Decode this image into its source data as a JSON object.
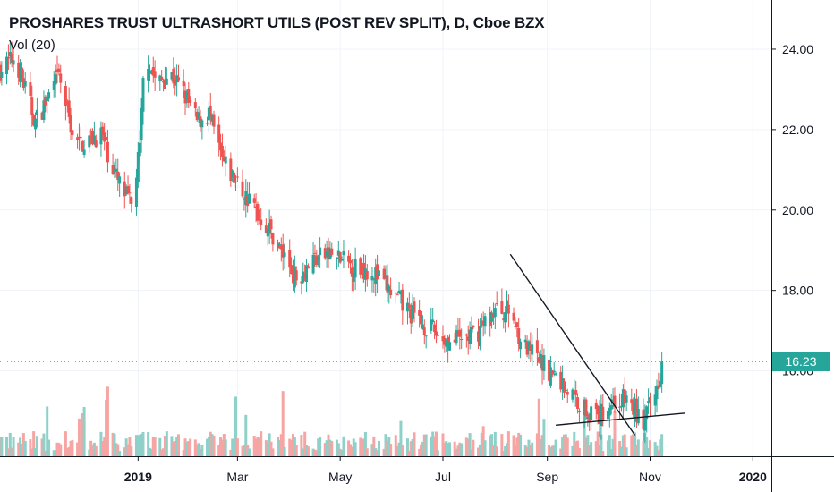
{
  "header": {
    "title": "PROSHARES TRUST ULTRASHORT UTILS (POST REV SPLIT), D, Cboe BZX",
    "volume_label": "Vol (20)"
  },
  "colors": {
    "up": "#26a69a",
    "down": "#ef5350",
    "up_volume": "#8fd0c9",
    "down_volume": "#f5a6a4",
    "last_price_line": "#26a69a",
    "trendline": "#131722",
    "grid": "#f0f3fa",
    "axis_text": "#131722"
  },
  "chart_data": {
    "type": "candlestick",
    "title": "PROSHARES TRUST ULTRASHORT UTILS (POST REV SPLIT), D, Cboe BZX",
    "y_axis": {
      "side": "right",
      "min": 14.1,
      "max": 25.0,
      "ticks": [
        24.0,
        22.0,
        20.0,
        18.0,
        16.0
      ]
    },
    "x_axis": {
      "ticks": [
        {
          "label": "2019",
          "x": "2019-01-01"
        },
        {
          "label": "Mar",
          "x": "2019-03-01"
        },
        {
          "label": "May",
          "x": "2019-05-01"
        },
        {
          "label": "Jul",
          "x": "2019-07-01"
        },
        {
          "label": "Sep",
          "x": "2019-09-01"
        },
        {
          "label": "Nov",
          "x": "2019-11-01"
        },
        {
          "label": "2020",
          "x": "2020-01-01"
        }
      ],
      "range": [
        "2018-10-11",
        "2020-01-12"
      ]
    },
    "last_price": 16.23,
    "approx_close_path": [
      {
        "date": "2018-10-11",
        "close": 23.5
      },
      {
        "date": "2018-10-20",
        "close": 23.8
      },
      {
        "date": "2018-11-01",
        "close": 22.2
      },
      {
        "date": "2018-11-15",
        "close": 23.3
      },
      {
        "date": "2018-11-25",
        "close": 21.6
      },
      {
        "date": "2018-12-10",
        "close": 21.9
      },
      {
        "date": "2018-12-20",
        "close": 20.7
      },
      {
        "date": "2018-12-28",
        "close": 20.1
      },
      {
        "date": "2019-01-02",
        "close": 21.5
      },
      {
        "date": "2019-01-05",
        "close": 24.0
      },
      {
        "date": "2019-01-12",
        "close": 23.1
      },
      {
        "date": "2019-01-20",
        "close": 23.4
      },
      {
        "date": "2019-01-27",
        "close": 23.0
      },
      {
        "date": "2019-02-05",
        "close": 22.2
      },
      {
        "date": "2019-02-12",
        "close": 22.4
      },
      {
        "date": "2019-02-20",
        "close": 21.2
      },
      {
        "date": "2019-03-05",
        "close": 20.4
      },
      {
        "date": "2019-03-20",
        "close": 19.5
      },
      {
        "date": "2019-04-05",
        "close": 18.3
      },
      {
        "date": "2019-04-15",
        "close": 18.8
      },
      {
        "date": "2019-04-25",
        "close": 18.9
      },
      {
        "date": "2019-05-08",
        "close": 18.6
      },
      {
        "date": "2019-05-20",
        "close": 18.5
      },
      {
        "date": "2019-06-01",
        "close": 17.9
      },
      {
        "date": "2019-06-15",
        "close": 17.3
      },
      {
        "date": "2019-06-25",
        "close": 17.0
      },
      {
        "date": "2019-07-05",
        "close": 16.7
      },
      {
        "date": "2019-07-20",
        "close": 16.9
      },
      {
        "date": "2019-08-01",
        "close": 17.5
      },
      {
        "date": "2019-08-10",
        "close": 17.5
      },
      {
        "date": "2019-08-18",
        "close": 16.6
      },
      {
        "date": "2019-09-05",
        "close": 15.9
      },
      {
        "date": "2019-09-20",
        "close": 15.2
      },
      {
        "date": "2019-10-01",
        "close": 14.8
      },
      {
        "date": "2019-10-08",
        "close": 15.2
      },
      {
        "date": "2019-10-18",
        "close": 15.3
      },
      {
        "date": "2019-10-28",
        "close": 14.7
      },
      {
        "date": "2019-11-04",
        "close": 15.4
      },
      {
        "date": "2019-11-08",
        "close": 16.23
      }
    ],
    "trendlines": [
      {
        "name": "descending",
        "from": {
          "date": "2019-08-10",
          "value": 18.9
        },
        "to": {
          "date": "2019-10-23",
          "value": 14.4
        }
      },
      {
        "name": "support",
        "from": {
          "date": "2019-09-06",
          "value": 14.65
        },
        "to": {
          "date": "2019-11-22",
          "value": 14.95
        }
      }
    ]
  }
}
